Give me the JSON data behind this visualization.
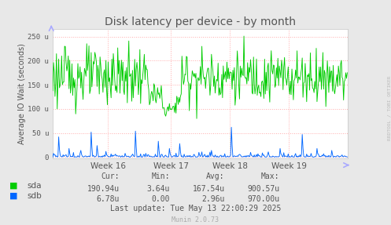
{
  "title": "Disk latency per device - by month",
  "ylabel": "Average IO Wait (seconds)",
  "background_color": "#e8e8e8",
  "plot_bg_color": "#ffffff",
  "grid_color": "#ffaaaa",
  "yticks": [
    0,
    50,
    100,
    150,
    200,
    250
  ],
  "ytick_labels": [
    "0",
    "50 u",
    "100 u",
    "150 u",
    "200 u",
    "250 u"
  ],
  "ylim": [
    -3,
    265
  ],
  "xlim": [
    0,
    400
  ],
  "week_ticks": [
    75,
    160,
    240,
    320
  ],
  "week_labels": [
    "Week 16",
    "Week 17",
    "Week 18",
    "Week 19"
  ],
  "sda_color": "#00cc00",
  "sdb_color": "#0066ff",
  "sda_label": "sda",
  "sdb_label": "sdb",
  "cur_sda": "190.94u",
  "min_sda": "3.64u",
  "avg_sda": "167.54u",
  "max_sda": "900.57u",
  "cur_sdb": "6.78u",
  "min_sdb": "0.00",
  "avg_sdb": "2.96u",
  "max_sdb": "970.00u",
  "last_update": "Last update: Tue May 13 22:00:29 2025",
  "munin_text": "Munin 2.0.73",
  "rrdtool_text": "RRDTOOL / TOBI OETIKER",
  "arrow_color": "#aaaaff",
  "spine_color": "#cccccc",
  "text_color": "#555555"
}
